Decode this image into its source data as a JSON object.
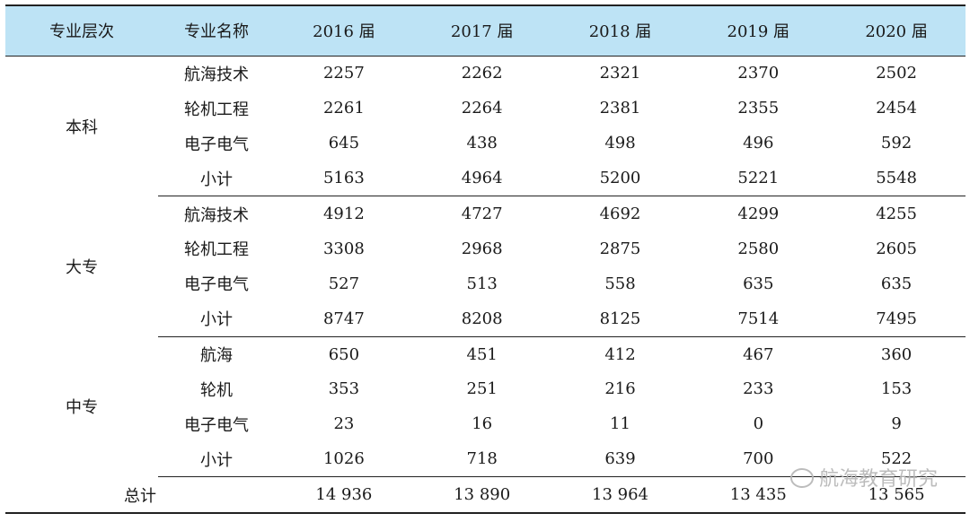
{
  "headers": [
    "专业层次",
    "专业名称",
    "2016 届",
    "2017 届",
    "2018 届",
    "2019 届",
    "2020 届"
  ],
  "groups": [
    {
      "level": "本科",
      "rows": [
        {
          "name": "航海技术",
          "values": [
            "2257",
            "2262",
            "2321",
            "2370",
            "2502"
          ]
        },
        {
          "name": "轮机工程",
          "values": [
            "2261",
            "2264",
            "2381",
            "2355",
            "2454"
          ]
        },
        {
          "name": "电子电气",
          "values": [
            "645",
            "438",
            "498",
            "496",
            "592"
          ]
        },
        {
          "name": "小计",
          "values": [
            "5163",
            "4964",
            "5200",
            "5221",
            "5548"
          ]
        }
      ]
    },
    {
      "level": "大专",
      "rows": [
        {
          "name": "航海技术",
          "values": [
            "4912",
            "4727",
            "4692",
            "4299",
            "4255"
          ]
        },
        {
          "name": "轮机工程",
          "values": [
            "3308",
            "2968",
            "2875",
            "2580",
            "2605"
          ]
        },
        {
          "name": "电子电气",
          "values": [
            "527",
            "513",
            "558",
            "635",
            "635"
          ]
        },
        {
          "name": "小计",
          "values": [
            "8747",
            "8208",
            "8125",
            "7514",
            "7495"
          ]
        }
      ]
    },
    {
      "level": "中专",
      "rows": [
        {
          "name": "航海",
          "values": [
            "650",
            "451",
            "412",
            "467",
            "360"
          ]
        },
        {
          "name": "轮机",
          "values": [
            "353",
            "251",
            "216",
            "233",
            "153"
          ]
        },
        {
          "name": "电子电气",
          "values": [
            "23",
            "16",
            "11",
            "0",
            "9"
          ]
        },
        {
          "name": "小计",
          "values": [
            "1026",
            "718",
            "639",
            "700",
            "522"
          ]
        }
      ]
    }
  ],
  "total": {
    "label": "总计",
    "values": [
      "14 936",
      "13 890",
      "13 964",
      "13 435",
      "13 565"
    ]
  },
  "watermark": "航海教育研究"
}
